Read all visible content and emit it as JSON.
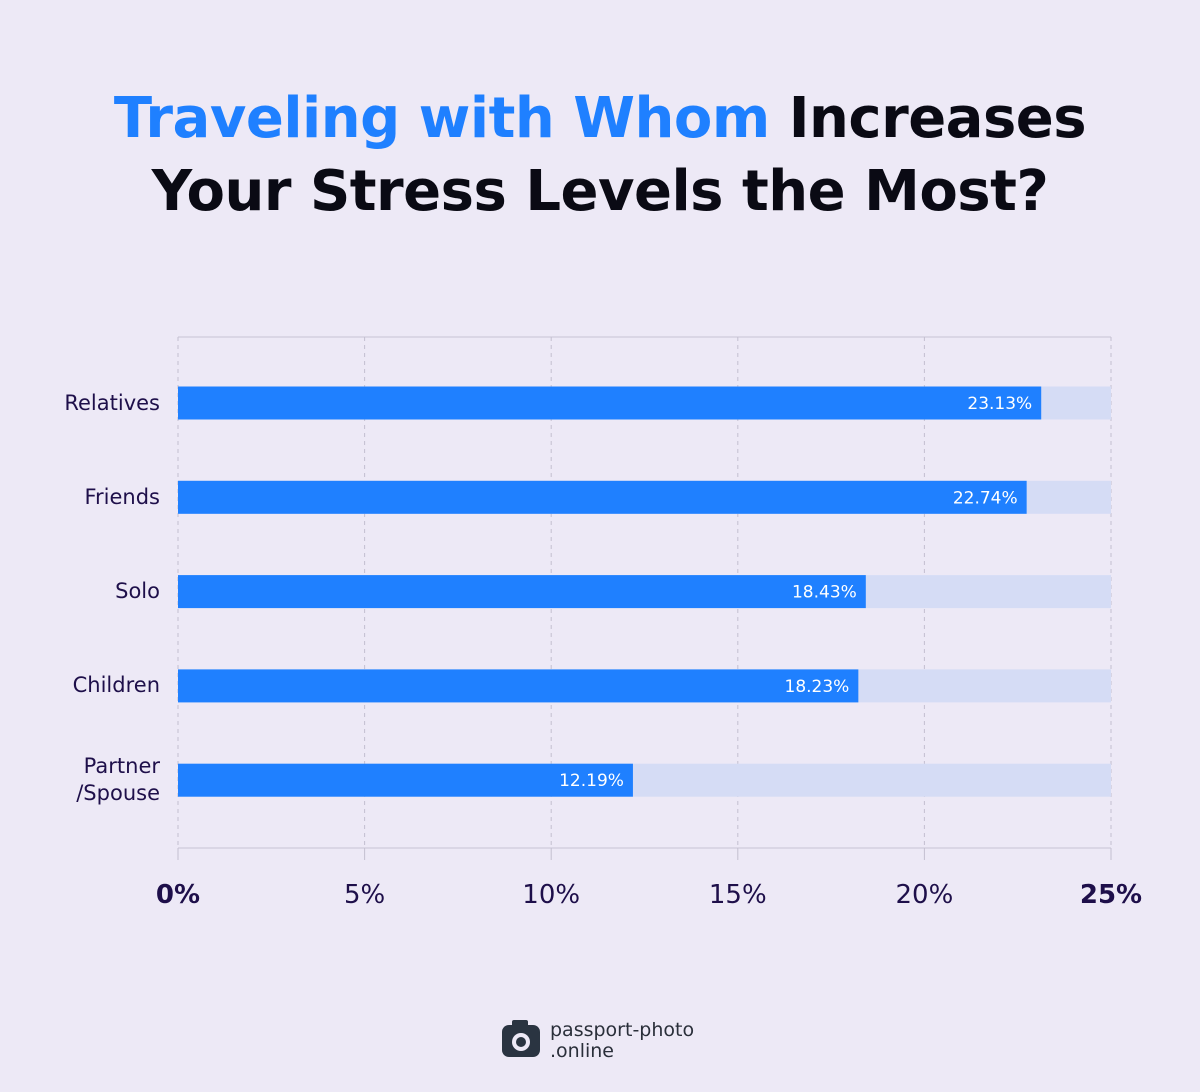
{
  "chart_data": {
    "type": "hbar",
    "title": {
      "highlight": "Traveling with Whom",
      "text": "Increases Your Stress Levels the Most?"
    },
    "categories": [
      "Relatives",
      "Friends",
      "Solo",
      "Children",
      "Partner /Spouse"
    ],
    "values": [
      23.13,
      22.74,
      18.43,
      18.23,
      12.19
    ],
    "value_labels": [
      "23.13%",
      "22.74%",
      "18.43%",
      "18.23%",
      "12.19%"
    ],
    "color": "#1f80ff",
    "xlim": [
      0,
      25
    ],
    "xticks": [
      {
        "value": 0,
        "label": "0%"
      },
      {
        "value": 5,
        "label": "5%"
      },
      {
        "value": 10,
        "label": "10%"
      },
      {
        "value": 15,
        "label": "15%"
      },
      {
        "value": 20,
        "label": "20%"
      },
      {
        "value": 25,
        "label": "25%"
      }
    ],
    "grid": true
  },
  "logo": {
    "line1": "passport-photo",
    "line2": ".online"
  }
}
